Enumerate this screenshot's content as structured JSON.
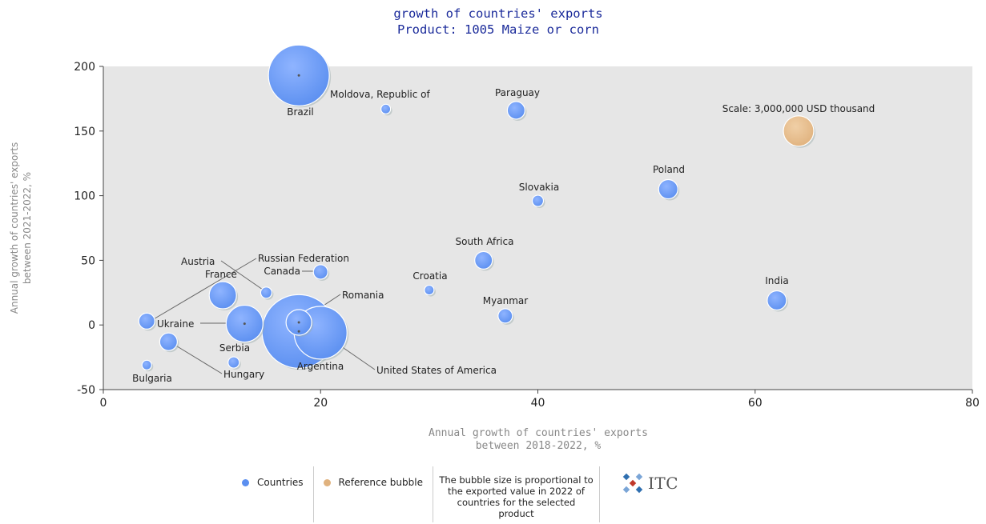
{
  "chart_data": {
    "type": "scatter",
    "title": "growth of countries' exports",
    "subtitle": "Product: 1005 Maize or corn",
    "xlabel_line1": "Annual growth of countries' exports",
    "xlabel_line2": "between 2018-2022, %",
    "ylabel_line1": "Annual growth of countries' exports",
    "ylabel_line2": "between 2021-2022, %",
    "xlim": [
      0,
      80
    ],
    "ylim": [
      -50,
      200
    ],
    "xticks": [
      0,
      20,
      40,
      60,
      80
    ],
    "yticks": [
      -50,
      0,
      50,
      100,
      150,
      200
    ],
    "grid": false,
    "colors": {
      "country": "#5b8ff0",
      "reference": "#e0b27e",
      "plot_bg": "#e6e6e6"
    },
    "points": [
      {
        "name": "Brazil",
        "x": 18,
        "y": 193,
        "size": 38
      },
      {
        "name": "Moldova, Republic of",
        "x": 26,
        "y": 167,
        "size": 6
      },
      {
        "name": "Paraguay",
        "x": 38,
        "y": 166,
        "size": 11
      },
      {
        "name": "Slovakia",
        "x": 40,
        "y": 96,
        "size": 7
      },
      {
        "name": "Poland",
        "x": 52,
        "y": 105,
        "size": 12
      },
      {
        "name": "South Africa",
        "x": 35,
        "y": 50,
        "size": 11
      },
      {
        "name": "Croatia",
        "x": 30,
        "y": 27,
        "size": 6
      },
      {
        "name": "India",
        "x": 62,
        "y": 19,
        "size": 12
      },
      {
        "name": "Myanmar",
        "x": 37,
        "y": 7,
        "size": 9
      },
      {
        "name": "Canada",
        "x": 20,
        "y": 41,
        "size": 9
      },
      {
        "name": "Austria",
        "x": 15,
        "y": 25,
        "size": 7
      },
      {
        "name": "France",
        "x": 11,
        "y": 23,
        "size": 17
      },
      {
        "name": "Russian Federation",
        "x": 4,
        "y": 3,
        "size": 10
      },
      {
        "name": "Ukraine",
        "x": 13,
        "y": 1,
        "size": 23
      },
      {
        "name": "Romania",
        "x": 18,
        "y": 2,
        "size": 16
      },
      {
        "name": "Argentina",
        "x": 18,
        "y": -5,
        "size": 46
      },
      {
        "name": "United States of America",
        "x": 20,
        "y": -6,
        "size": 33
      },
      {
        "name": "Serbia",
        "x": 12,
        "y": -29,
        "size": 7
      },
      {
        "name": "Hungary",
        "x": 6,
        "y": -13,
        "size": 11
      },
      {
        "name": "Bulgaria",
        "x": 4,
        "y": -31,
        "size": 6
      }
    ],
    "reference": {
      "label": "Scale: 3,000,000 USD thousand",
      "x": 64,
      "y": 150,
      "size": 19
    },
    "legend": {
      "countries": "Countries",
      "reference": "Reference bubble",
      "note": "The bubble size is proportional to the exported value in 2022 of countries for the selected product"
    }
  },
  "logo": {
    "text": "ITC"
  }
}
